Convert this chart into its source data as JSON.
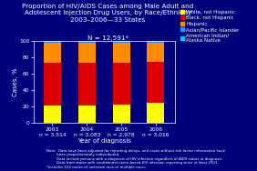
{
  "title_lines": [
    "Proportion of HIV/AIDS Cases among Male Adult and",
    "Adolescent Injection Drug Users, by Race/Ethnicity",
    "2003–2006—33 States"
  ],
  "subtitle": "N = 12,591*",
  "years": [
    "2003",
    "2004",
    "2005",
    "2006"
  ],
  "ns": [
    "n = 3,514",
    "n = 3,083",
    "n = 2,978",
    "n = 3,016"
  ],
  "xlabel": "Year of diagnosis",
  "ylabel": "Cases, %",
  "ylim": [
    0,
    100
  ],
  "yticks": [
    0,
    20,
    40,
    60,
    80,
    100
  ],
  "categories": [
    "White, not Hispanic",
    "Black, not Hispanic",
    "Hispanic",
    "Asian/Pacific Islander",
    "American Indian/\nAlaska Native"
  ],
  "colors": [
    "#FFFF00",
    "#DD0000",
    "#FF8C00",
    "#1E90FF",
    "#00BFFF"
  ],
  "data": {
    "White, not Hispanic": [
      21,
      22,
      23,
      25
    ],
    "Black, not Hispanic": [
      53,
      52,
      51,
      50
    ],
    "Hispanic": [
      24,
      24,
      24,
      23
    ],
    "Asian/Pacific Islander": [
      1,
      1,
      1,
      1
    ],
    "American Indian/\nAlaska Native": [
      1,
      1,
      1,
      1
    ]
  },
  "bg_color": "#00007A",
  "plot_bg_color": "#00007A",
  "text_color": "#FFFFFF",
  "bar_width": 0.5,
  "title_fontsize": 5.2,
  "axis_label_fontsize": 5.0,
  "tick_fontsize": 4.3,
  "legend_fontsize": 4.0,
  "footer_text": "Note:  Data have been adjusted for reporting delays, and cases without risk factor information have\n         been proportionately redistributed.\n         Data include persons with a diagnosis of HIV infection regardless of AIDS status at diagnosis.\n         Data from states with confidential name-based HIV infection reporting since at least 2001.\n*Includes 102 males of unknown race or multiple races."
}
